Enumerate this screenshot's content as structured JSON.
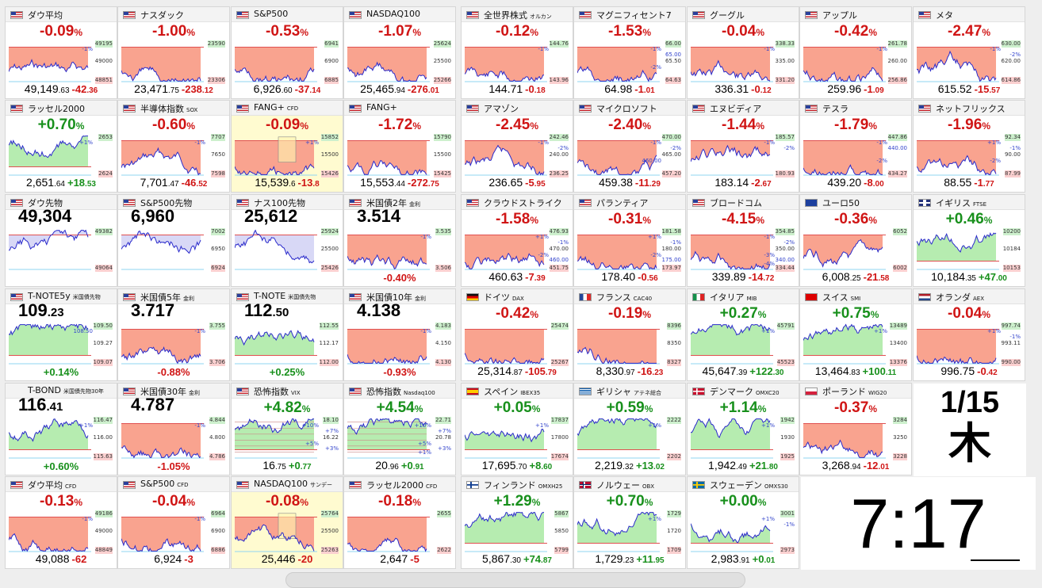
{
  "date": {
    "top": "1/15",
    "bottom": "木"
  },
  "clock": {
    "hours": "7",
    "sep": ":",
    "minutes": "17"
  },
  "tiles": [
    {
      "name": "ダウ平均",
      "sub": "",
      "flag": "us",
      "mode": "pct",
      "pct": "-0.09",
      "dir": "d",
      "hi": "49195",
      "mid": "49000",
      "lo": "48851",
      "extra": [
        "-1%"
      ],
      "price": "49,149",
      "pdec": ".63",
      "chg": "-42",
      "cdec": ".36"
    },
    {
      "name": "ナスダック",
      "sub": "",
      "flag": "us",
      "mode": "pct",
      "pct": "-1.00",
      "dir": "d",
      "hi": "23590",
      "mid": "",
      "lo": "23306",
      "extra": [],
      "price": "23,471",
      "pdec": ".75",
      "chg": "-238",
      "cdec": ".12"
    },
    {
      "name": "S&P500",
      "sub": "",
      "flag": "us",
      "mode": "pct",
      "pct": "-0.53",
      "dir": "d",
      "hi": "6941",
      "mid": "6900",
      "lo": "6885",
      "extra": [],
      "price": "6,926",
      "pdec": ".60",
      "chg": "-37",
      "cdec": ".14"
    },
    {
      "name": "NASDAQ100",
      "sub": "",
      "flag": "us",
      "mode": "pct",
      "pct": "-1.07",
      "dir": "d",
      "hi": "25624",
      "mid": "25500",
      "lo": "25266",
      "extra": [],
      "price": "25,465",
      "pdec": ".94",
      "chg": "-276",
      "cdec": ".01"
    },
    {
      "name": "全世界株式",
      "sub": "オルカン",
      "flag": "us",
      "mode": "pct",
      "pct": "-0.12",
      "dir": "d",
      "hi": "144.76",
      "mid": "",
      "lo": "143.96",
      "extra": [
        "-1%"
      ],
      "price": "144.71",
      "pdec": "",
      "chg": "-0",
      "cdec": ".18"
    },
    {
      "name": "マグニフィセント7",
      "sub": "",
      "flag": "us",
      "mode": "pct",
      "pct": "-1.53",
      "dir": "d",
      "hi": "66.00",
      "mid": "65.50",
      "lo": "64.63",
      "extra": [
        "-1%",
        "65.00",
        "-2%"
      ],
      "price": "64.98",
      "pdec": "",
      "chg": "-1",
      "cdec": ".01"
    },
    {
      "name": "グーグル",
      "sub": "",
      "flag": "us",
      "mode": "pct",
      "pct": "-0.04",
      "dir": "d",
      "hi": "338.33",
      "mid": "335.00",
      "lo": "331.20",
      "extra": [
        "-1%"
      ],
      "price": "336.31",
      "pdec": "",
      "chg": "-0",
      "cdec": ".12"
    },
    {
      "name": "アップル",
      "sub": "",
      "flag": "us",
      "mode": "pct",
      "pct": "-0.42",
      "dir": "d",
      "hi": "261.78",
      "mid": "260.00",
      "lo": "256.86",
      "extra": [
        "-1%"
      ],
      "price": "259.96",
      "pdec": "",
      "chg": "-1",
      "cdec": ".09"
    },
    {
      "name": "メタ",
      "sub": "",
      "flag": "us",
      "mode": "pct",
      "pct": "-2.47",
      "dir": "d",
      "hi": "630.00",
      "mid": "620.00",
      "lo": "614.86",
      "extra": [
        "-1%",
        "-2%"
      ],
      "price": "615.52",
      "pdec": "",
      "chg": "-15",
      "cdec": ".57"
    },
    {
      "name": "ラッセル2000",
      "sub": "",
      "flag": "us",
      "mode": "pct",
      "pct": "+0.70",
      "dir": "u",
      "hi": "2653",
      "mid": "",
      "lo": "2624",
      "extra": [
        "+1%"
      ],
      "price": "2,651",
      "pdec": ".64",
      "chg": "+18",
      "cdec": ".53"
    },
    {
      "name": "半導体指数",
      "sub": "SOX",
      "flag": "us",
      "mode": "pct",
      "pct": "-0.60",
      "dir": "d",
      "hi": "7707",
      "mid": "7650",
      "lo": "7598",
      "extra": [
        "-1%"
      ],
      "price": "7,701",
      "pdec": ".47",
      "chg": "-46",
      "cdec": ".52"
    },
    {
      "name": "FANG+",
      "sub": "CFD",
      "flag": "us",
      "mode": "pct",
      "pct": "-0.09",
      "dir": "d",
      "hi": "15852",
      "mid": "15500",
      "lo": "15426",
      "extra": [
        "+1%"
      ],
      "price": "15,539",
      "pdec": ".6",
      "chg": "-13",
      "cdec": ".8",
      "ylw": true
    },
    {
      "name": "FANG+",
      "sub": "",
      "flag": "us",
      "mode": "pct",
      "pct": "-1.72",
      "dir": "d",
      "hi": "15790",
      "mid": "15500",
      "lo": "15425",
      "extra": [],
      "price": "15,553",
      "pdec": ".44",
      "chg": "-272",
      "cdec": ".75"
    },
    {
      "name": "アマゾン",
      "sub": "",
      "flag": "us",
      "mode": "pct",
      "pct": "-2.45",
      "dir": "d",
      "hi": "242.46",
      "mid": "240.00",
      "lo": "236.25",
      "extra": [
        "-1%",
        "-2%"
      ],
      "price": "236.65",
      "pdec": "",
      "chg": "-5",
      "cdec": ".95"
    },
    {
      "name": "マイクロソフト",
      "sub": "",
      "flag": "us",
      "mode": "pct",
      "pct": "-2.40",
      "dir": "d",
      "hi": "470.00",
      "mid": "465.00",
      "lo": "457.20",
      "extra": [
        "-1%",
        "-2%",
        "460.00"
      ],
      "price": "459.38",
      "pdec": "",
      "chg": "-11",
      "cdec": ".29"
    },
    {
      "name": "エヌビディア",
      "sub": "",
      "flag": "us",
      "mode": "pct",
      "pct": "-1.44",
      "dir": "d",
      "hi": "185.57",
      "mid": "",
      "lo": "180.93",
      "extra": [
        "-1%",
        "-2%"
      ],
      "price": "183.14",
      "pdec": "",
      "chg": "-2",
      "cdec": ".67"
    },
    {
      "name": "テスラ",
      "sub": "",
      "flag": "us",
      "mode": "pct",
      "pct": "-1.79",
      "dir": "d",
      "hi": "447.86",
      "mid": "",
      "lo": "434.27",
      "extra": [
        "-1%",
        "440.00",
        "-2%"
      ],
      "price": "439.20",
      "pdec": "",
      "chg": "-8",
      "cdec": ".00"
    },
    {
      "name": "ネットフリックス",
      "sub": "",
      "flag": "us",
      "mode": "pct",
      "pct": "-1.96",
      "dir": "d",
      "hi": "92.34",
      "mid": "90.00",
      "lo": "87.99",
      "extra": [
        "+1%",
        "-1%",
        "-2%"
      ],
      "price": "88.55",
      "pdec": "",
      "chg": "-1",
      "cdec": ".77"
    },
    {
      "name": "ダウ先物",
      "sub": "",
      "flag": "us",
      "mode": "level",
      "lvl": "49,304",
      "ldec": "",
      "dir": "n",
      "hi": "49382",
      "mid": "",
      "lo": "49064",
      "extra": [],
      "chg": ""
    },
    {
      "name": "S&P500先物",
      "sub": "",
      "flag": "us",
      "mode": "level",
      "lvl": "6,960",
      "ldec": "",
      "dir": "n",
      "hi": "7002",
      "mid": "6950",
      "lo": "6924",
      "extra": [],
      "chg": ""
    },
    {
      "name": "ナス100先物",
      "sub": "",
      "flag": "us",
      "mode": "level",
      "lvl": "25,612",
      "ldec": "",
      "dir": "n",
      "hi": "25924",
      "mid": "25500",
      "lo": "25426",
      "extra": [],
      "chg": ""
    },
    {
      "name": "米国債2年",
      "sub": "金利",
      "flag": "us",
      "mode": "level",
      "lvl": "3.514",
      "ldec": "",
      "dir": "d",
      "hi": "3.535",
      "mid": "",
      "lo": "3.506",
      "extra": [
        "-1%"
      ],
      "chg": "-0.40%"
    },
    {
      "name": "クラウドストライク",
      "sub": "",
      "flag": "us",
      "mode": "pct",
      "pct": "-1.58",
      "dir": "d",
      "hi": "476.93",
      "mid": "470.00",
      "lo": "451.75",
      "extra": [
        "+1%",
        "-1%",
        "-2%",
        "460.00"
      ],
      "price": "460.63",
      "pdec": "",
      "chg": "-7",
      "cdec": ".39"
    },
    {
      "name": "パランティア",
      "sub": "",
      "flag": "us",
      "mode": "pct",
      "pct": "-0.31",
      "dir": "d",
      "hi": "181.58",
      "mid": "180.00",
      "lo": "173.97",
      "extra": [
        "+1%",
        "-1%",
        "-2%",
        "175.00"
      ],
      "price": "178.40",
      "pdec": "",
      "chg": "-0",
      "cdec": ".56"
    },
    {
      "name": "ブロードコム",
      "sub": "",
      "flag": "us",
      "mode": "pct",
      "pct": "-4.15",
      "dir": "d",
      "hi": "354.85",
      "mid": "350.00",
      "lo": "334.44",
      "extra": [
        "-1%",
        "-2%",
        "-3%",
        "340.00",
        "-4%"
      ],
      "price": "339.89",
      "pdec": "",
      "chg": "-14",
      "cdec": ".72"
    },
    {
      "name": "ユーロ50",
      "sub": "",
      "flag": "eu",
      "mode": "pct",
      "pct": "-0.36",
      "dir": "d",
      "hi": "6052",
      "mid": "",
      "lo": "6002",
      "extra": [],
      "price": "6,008",
      "pdec": ".25",
      "chg": "-21",
      "cdec": ".58"
    },
    {
      "name": "イギリス",
      "sub": "FTSE",
      "flag": "gb",
      "mode": "pct",
      "pct": "+0.46",
      "dir": "u",
      "hi": "10200",
      "mid": "10184",
      "lo": "10153",
      "extra": [],
      "price": "10,184",
      "pdec": ".35",
      "chg": "+47",
      "cdec": ".00"
    },
    {
      "name": "T-NOTE5y",
      "sub": "米国債先物",
      "flag": "us",
      "mode": "level",
      "lvl": "109",
      "ldec": ".23",
      "dir": "u",
      "hi": "109.50",
      "mid": "109.27",
      "lo": "109.07",
      "extra": [
        "108.50"
      ],
      "chg": "+0.14%"
    },
    {
      "name": "米国債5年",
      "sub": "金利",
      "flag": "us",
      "mode": "level",
      "lvl": "3.717",
      "ldec": "",
      "dir": "d",
      "hi": "3.755",
      "mid": "",
      "lo": "3.706",
      "extra": [
        "-1%"
      ],
      "chg": "-0.88%"
    },
    {
      "name": "T-NOTE",
      "sub": "米国債先物",
      "flag": "us",
      "mode": "level",
      "lvl": "112",
      "ldec": ".50",
      "dir": "u",
      "hi": "112.55",
      "mid": "112.17",
      "lo": "112.00",
      "extra": [],
      "chg": "+0.25%"
    },
    {
      "name": "米国債10年",
      "sub": "金利",
      "flag": "us",
      "mode": "level",
      "lvl": "4.138",
      "ldec": "",
      "dir": "d",
      "hi": "4.183",
      "mid": "4.150",
      "lo": "4.130",
      "extra": [
        "-1%"
      ],
      "chg": "-0.93%"
    },
    {
      "name": "ドイツ",
      "sub": "DAX",
      "flag": "de",
      "mode": "pct",
      "pct": "-0.42",
      "dir": "d",
      "hi": "25474",
      "mid": "",
      "lo": "25267",
      "extra": [],
      "price": "25,314",
      "pdec": ".87",
      "chg": "-105",
      "cdec": ".79"
    },
    {
      "name": "フランス",
      "sub": "CAC40",
      "flag": "fr",
      "mode": "pct",
      "pct": "-0.19",
      "dir": "d",
      "hi": "8396",
      "mid": "8350",
      "lo": "8327",
      "extra": [],
      "price": "8,330",
      "pdec": ".97",
      "chg": "-16",
      "cdec": ".23"
    },
    {
      "name": "イタリア",
      "sub": "MIB",
      "flag": "it",
      "mode": "pct",
      "pct": "+0.27",
      "dir": "u",
      "hi": "45791",
      "mid": "",
      "lo": "45523",
      "extra": [
        "+1%"
      ],
      "price": "45,647",
      "pdec": ".39",
      "chg": "+122",
      "cdec": ".30"
    },
    {
      "name": "スイス",
      "sub": "SMI",
      "flag": "ch",
      "mode": "pct",
      "pct": "+0.75",
      "dir": "u",
      "hi": "13489",
      "mid": "13400",
      "lo": "13376",
      "extra": [
        "+1%"
      ],
      "price": "13,464",
      "pdec": ".83",
      "chg": "+100",
      "cdec": ".11"
    },
    {
      "name": "オランダ",
      "sub": "AEX",
      "flag": "nl",
      "mode": "pct",
      "pct": "-0.04",
      "dir": "d",
      "hi": "997.74",
      "mid": "993.11",
      "lo": "990.00",
      "extra": [
        "+1%",
        "-1%"
      ],
      "price": "996.75",
      "pdec": "",
      "chg": "-0",
      "cdec": ".42"
    },
    {
      "name": "T-BOND",
      "sub": "米国債先物30年",
      "flag": "",
      "mode": "level",
      "lvl": "116",
      "ldec": ".41",
      "dir": "u",
      "hi": "116.47",
      "mid": "116.00",
      "lo": "115.63",
      "extra": [
        "+1%"
      ],
      "chg": "+0.60%"
    },
    {
      "name": "米国債30年",
      "sub": "金利",
      "flag": "us",
      "mode": "level",
      "lvl": "4.787",
      "ldec": "",
      "dir": "d",
      "hi": "4.844",
      "mid": "4.800",
      "lo": "4.786",
      "extra": [
        "-1%"
      ],
      "chg": "-1.05%"
    },
    {
      "name": "恐怖指数",
      "sub": "VIX",
      "flag": "us",
      "mode": "pct",
      "pct": "+4.82",
      "dir": "u",
      "hi": "18.10",
      "mid": "16.22",
      "lo": "",
      "extra": [
        "+10%",
        "+7%",
        "+5%",
        "+3%"
      ],
      "price": "16",
      "pdec": ".75",
      "chg": "+0",
      "cdec": ".77",
      "vol": true
    },
    {
      "name": "恐怖指数",
      "sub": "Nasdaq100",
      "flag": "us",
      "mode": "pct",
      "pct": "+4.54",
      "dir": "u",
      "hi": "22.71",
      "mid": "20.78",
      "lo": "",
      "extra": [
        "+10%",
        "+7%",
        "+5%",
        "+3%",
        "+1%"
      ],
      "price": "20",
      "pdec": ".96",
      "chg": "+0",
      "cdec": ".91",
      "vol": true
    },
    {
      "name": "スペイン",
      "sub": "IBEX35",
      "flag": "es",
      "mode": "pct",
      "pct": "+0.05",
      "dir": "u",
      "hi": "17837",
      "mid": "17800",
      "lo": "17674",
      "extra": [
        "+1%"
      ],
      "price": "17,695",
      "pdec": ".70",
      "chg": "+8",
      "cdec": ".60"
    },
    {
      "name": "ギリシャ",
      "sub": "アテネ総合",
      "flag": "gr",
      "mode": "pct",
      "pct": "+0.59",
      "dir": "u",
      "hi": "2222",
      "mid": "",
      "lo": "2202",
      "extra": [
        "+1%"
      ],
      "price": "2,219",
      "pdec": ".32",
      "chg": "+13",
      "cdec": ".02"
    },
    {
      "name": "デンマーク",
      "sub": "OMXC20",
      "flag": "dk",
      "mode": "pct",
      "pct": "+1.14",
      "dir": "u",
      "hi": "1942",
      "mid": "1930",
      "lo": "1925",
      "extra": [
        "+1%"
      ],
      "price": "1,942",
      "pdec": ".49",
      "chg": "+21",
      "cdec": ".80"
    },
    {
      "name": "ポーランド",
      "sub": "WIG20",
      "flag": "pl",
      "mode": "pct",
      "pct": "-0.37",
      "dir": "d",
      "hi": "3284",
      "mid": "3250",
      "lo": "3228",
      "extra": [],
      "price": "3,268",
      "pdec": ".94",
      "chg": "-12",
      "cdec": ".01"
    },
    {
      "name": "ダウ平均",
      "sub": "CFD",
      "flag": "us",
      "mode": "pct",
      "pct": "-0.13",
      "dir": "d",
      "hi": "49186",
      "mid": "49000",
      "lo": "48849",
      "extra": [
        "-1%"
      ],
      "price": "49,088",
      "pdec": "",
      "chg": "-62",
      "cdec": ""
    },
    {
      "name": "S&P500",
      "sub": "CFD",
      "flag": "us",
      "mode": "pct",
      "pct": "-0.04",
      "dir": "d",
      "hi": "6964",
      "mid": "6900",
      "lo": "6886",
      "extra": [
        "-1%"
      ],
      "price": "6,924",
      "pdec": "",
      "chg": "-3",
      "cdec": ""
    },
    {
      "name": "NASDAQ100",
      "sub": "サンデー",
      "flag": "us",
      "mode": "pct",
      "pct": "-0.08",
      "dir": "d",
      "hi": "25764",
      "mid": "25500",
      "lo": "25263",
      "extra": [],
      "price": "25,446",
      "pdec": "",
      "chg": "-20",
      "cdec": "",
      "ylw": true
    },
    {
      "name": "ラッセル2000",
      "sub": "CFD",
      "flag": "us",
      "mode": "pct",
      "pct": "-0.18",
      "dir": "d",
      "hi": "2655",
      "mid": "",
      "lo": "2622",
      "extra": [],
      "price": "2,647",
      "pdec": "",
      "chg": "-5",
      "cdec": ""
    },
    {
      "name": "フィンランド",
      "sub": "OMXH25",
      "flag": "fi",
      "mode": "pct",
      "pct": "+1.29",
      "dir": "u",
      "hi": "5867",
      "mid": "5850",
      "lo": "5799",
      "extra": [],
      "price": "5,867",
      "pdec": ".30",
      "chg": "+74",
      "cdec": ".87"
    },
    {
      "name": "ノルウェー",
      "sub": "OBX",
      "flag": "no",
      "mode": "pct",
      "pct": "+0.70",
      "dir": "u",
      "hi": "1729",
      "mid": "1720",
      "lo": "1709",
      "extra": [
        "+1%"
      ],
      "price": "1,729",
      "pdec": ".23",
      "chg": "+11",
      "cdec": ".95"
    },
    {
      "name": "スウェーデン",
      "sub": "OMXS30",
      "flag": "se",
      "mode": "pct",
      "pct": "+0.00",
      "dir": "u",
      "hi": "3001",
      "mid": "",
      "lo": "2973",
      "extra": [
        "+1%",
        "-1%"
      ],
      "price": "2,983",
      "pdec": ".91",
      "chg": "+0",
      "cdec": ".01"
    }
  ]
}
